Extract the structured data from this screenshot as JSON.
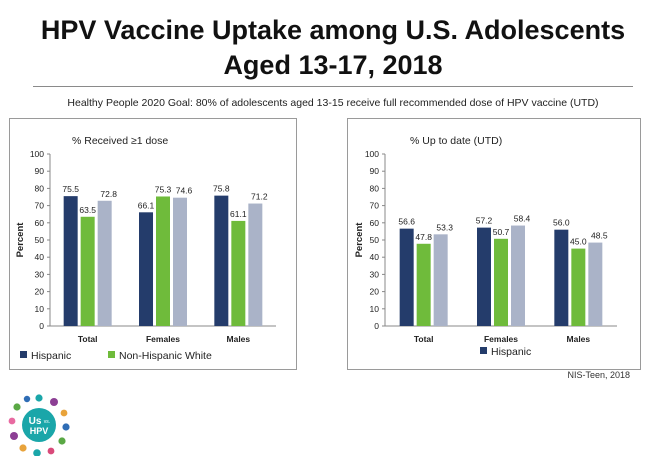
{
  "title_line1": "HPV Vaccine Uptake among U.S. Adolescents",
  "title_line2": "Aged 13-17, 2018",
  "goal_text": "Healthy People 2020 Goal: 80% of adolescents aged 13-15 receive full recommended dose of HPV vaccine (UTD)",
  "source": "NIS-Teen, 2018",
  "logo": {
    "line1": "Us",
    "small": "vs.",
    "line2": "HPV"
  },
  "colors": {
    "hispanic": "#243c6b",
    "nhwhite": "#6fbb3b",
    "third": "#aab3c8",
    "logo_center": "#1aa6a9"
  },
  "chart_data": [
    {
      "type": "bar",
      "title": "% Received ≥1 dose",
      "ylabel": "Percent",
      "ylim": [
        0,
        100
      ],
      "yticks": [
        0,
        10,
        20,
        30,
        40,
        50,
        60,
        70,
        80,
        90,
        100
      ],
      "categories": [
        "Total",
        "Females",
        "Males"
      ],
      "series": [
        {
          "name": "Hispanic",
          "values": [
            75.5,
            66.1,
            75.8
          ]
        },
        {
          "name": "Non-Hispanic White",
          "values": [
            63.5,
            75.3,
            61.1
          ]
        },
        {
          "name": "",
          "values": [
            72.8,
            74.6,
            71.2
          ]
        }
      ],
      "value_labels": [
        [
          "75.5",
          "66.1",
          "75.8"
        ],
        [
          "63.5",
          "75.3",
          "61.1"
        ],
        [
          "72.8",
          "74.6",
          "71.2"
        ]
      ],
      "legend": [
        "Hispanic",
        "Non-Hispanic White"
      ]
    },
    {
      "type": "bar",
      "title": "% Up to date (UTD)",
      "ylabel": "Percent",
      "ylim": [
        0,
        100
      ],
      "yticks": [
        0,
        10,
        20,
        30,
        40,
        50,
        60,
        70,
        80,
        90,
        100
      ],
      "categories": [
        "Total",
        "Females",
        "Males"
      ],
      "series": [
        {
          "name": "Hispanic",
          "values": [
            56.6,
            57.2,
            56.0
          ]
        },
        {
          "name": "Non-Hispanic White",
          "values": [
            47.8,
            50.7,
            45.0
          ]
        },
        {
          "name": "",
          "values": [
            53.3,
            58.4,
            48.5
          ]
        }
      ],
      "value_labels": [
        [
          "56.6",
          "57.2",
          "56.0"
        ],
        [
          "47.8",
          "50.7",
          "45.0"
        ],
        [
          "53.3",
          "58.4",
          "48.5"
        ]
      ],
      "legend": [
        "Hispanic"
      ]
    }
  ]
}
